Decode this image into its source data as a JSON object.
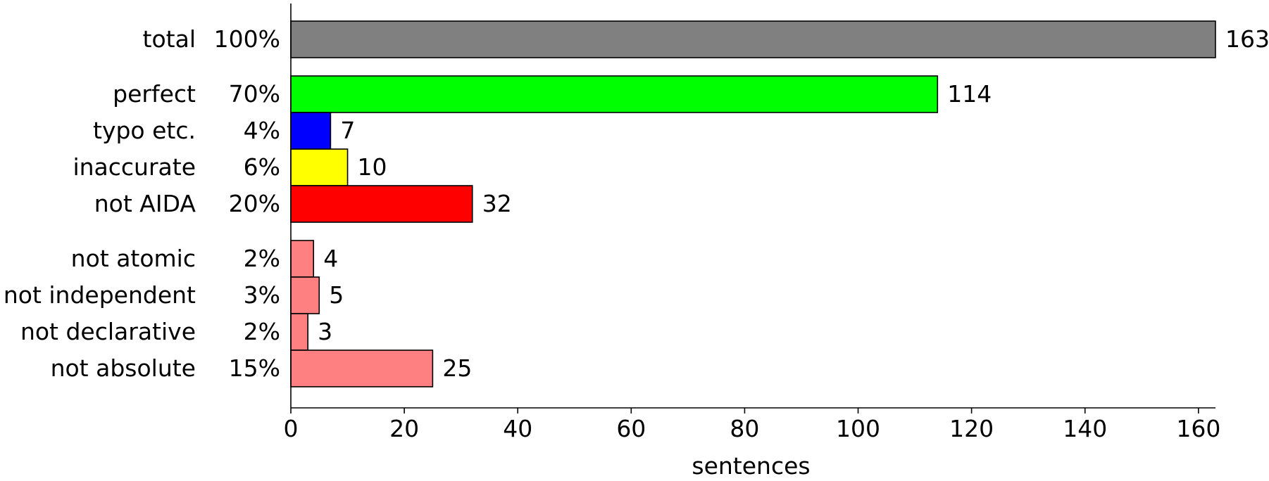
{
  "chart_data": {
    "type": "bar",
    "orientation": "horizontal",
    "title": "",
    "xlabel": "sentences",
    "ylabel": "",
    "xlim": [
      0,
      163
    ],
    "xticks": [
      0,
      20,
      40,
      60,
      80,
      100,
      120,
      140,
      160
    ],
    "grid": false,
    "legend": "none",
    "groups": [
      {
        "bars": [
          {
            "label": "total",
            "percent": "100%",
            "value": 163,
            "color": "#808080"
          }
        ]
      },
      {
        "bars": [
          {
            "label": "perfect",
            "percent": "70%",
            "value": 114,
            "color": "#00ff00"
          },
          {
            "label": "typo etc.",
            "percent": "4%",
            "value": 7,
            "color": "#0000ff"
          },
          {
            "label": "inaccurate",
            "percent": "6%",
            "value": 10,
            "color": "#ffff00"
          },
          {
            "label": "not AIDA",
            "percent": "20%",
            "value": 32,
            "color": "#ff0000"
          }
        ]
      },
      {
        "bars": [
          {
            "label": "not atomic",
            "percent": "2%",
            "value": 4,
            "color": "#ff8080"
          },
          {
            "label": "not independent",
            "percent": "3%",
            "value": 5,
            "color": "#ff8080"
          },
          {
            "label": "not declarative",
            "percent": "2%",
            "value": 3,
            "color": "#ff8080"
          },
          {
            "label": "not absolute",
            "percent": "15%",
            "value": 25,
            "color": "#ff8080"
          }
        ]
      }
    ]
  }
}
